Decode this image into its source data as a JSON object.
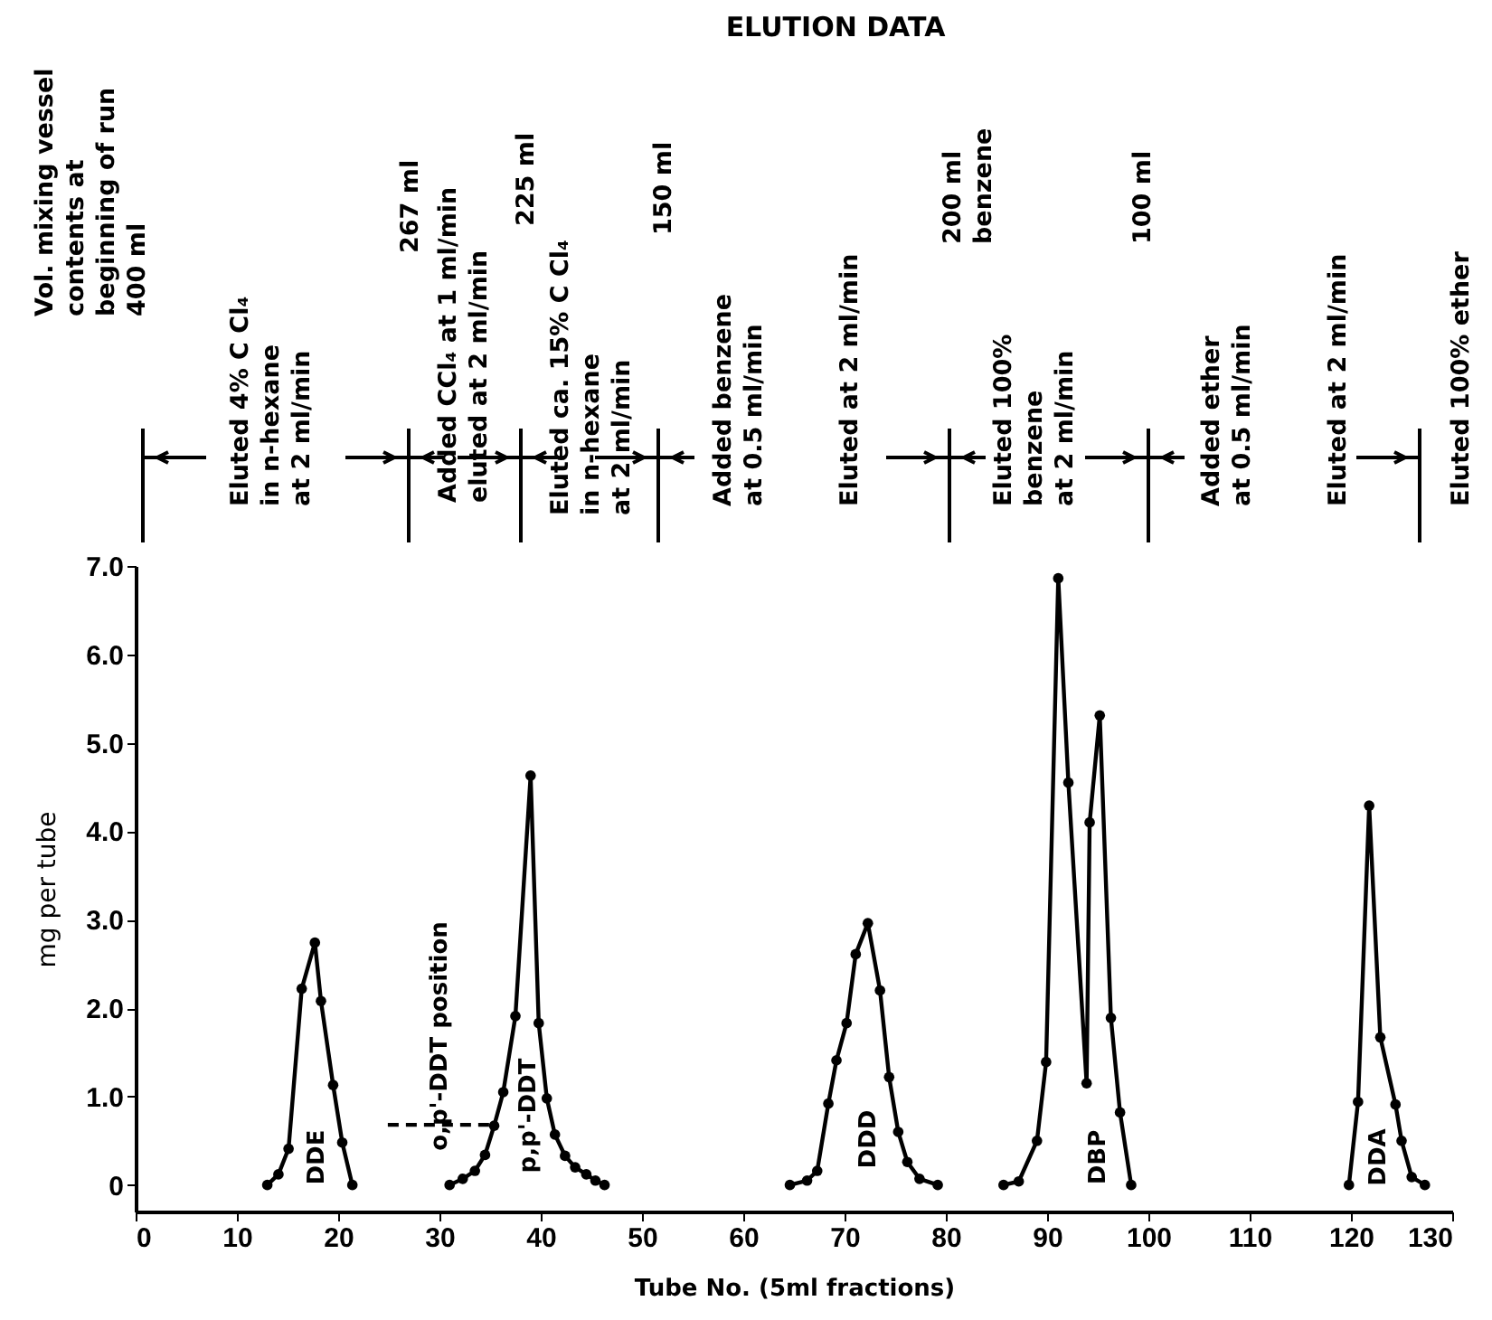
{
  "chart_data": {
    "type": "line",
    "title": "ELUTION DATA",
    "xlabel": "Tube No. (5ml fractions)",
    "ylabel": "mg per tube",
    "xlim": [
      0,
      130
    ],
    "xticks": [
      0,
      10,
      20,
      30,
      40,
      50,
      60,
      70,
      80,
      90,
      100,
      110,
      120,
      130
    ],
    "ylim": [
      -0.3,
      7
    ],
    "yticks": [
      0,
      {
        "value": 1,
        "label": "1.0"
      },
      {
        "value": 2,
        "label": "2.0"
      },
      {
        "value": 3,
        "label": "3.0"
      },
      {
        "value": 4,
        "label": "4.0"
      },
      {
        "value": 5,
        "label": "5.0"
      },
      {
        "value": 6,
        "label": "6.0"
      },
      {
        "value": 7,
        "label": "7.0"
      }
    ],
    "grid": false,
    "line_style": "solid",
    "series": [
      {
        "color": "#000000",
        "marker": "circle",
        "x": [
          13,
          14.1,
          15.1,
          16.4,
          17.7,
          18.3,
          19.5,
          20.4,
          21.4
        ],
        "values": [
          0,
          0.12,
          0.41,
          2.22,
          2.74,
          2.08,
          1.13,
          0.48,
          0
        ]
      },
      {
        "color": "#000000",
        "marker": "circle",
        "x": [
          31,
          32.3,
          33.5,
          34.5,
          35.4,
          36.3,
          37.5,
          39,
          39.8,
          40.6,
          41.4,
          42.4,
          43.4,
          44.5,
          45.4,
          46.3
        ],
        "values": [
          0,
          0.07,
          0.16,
          0.34,
          0.67,
          1.05,
          1.91,
          4.63,
          1.83,
          0.98,
          0.57,
          0.33,
          0.2,
          0.12,
          0.05,
          0
        ]
      },
      {
        "color": "#000000",
        "marker": "circle",
        "x": [
          64.6,
          66.3,
          67.3,
          68.4,
          69.2,
          70.2,
          71.1,
          72.3,
          73.5,
          74.4,
          75.3,
          76.2,
          77.4,
          79.2
        ],
        "values": [
          0,
          0.05,
          0.16,
          0.92,
          1.41,
          1.83,
          2.61,
          2.96,
          2.2,
          1.22,
          0.6,
          0.26,
          0.07,
          0
        ]
      },
      {
        "color": "#000000",
        "marker": "circle",
        "x": [
          85.7,
          87.2,
          89,
          89.9,
          91.1,
          92.1,
          93.9,
          94.2,
          95.2,
          96.3,
          97.2,
          98.3
        ],
        "values": [
          0,
          0.04,
          0.5,
          1.39,
          6.86,
          4.55,
          1.15,
          4.1,
          5.31,
          1.89,
          0.82,
          0
        ]
      },
      {
        "color": "#000000",
        "marker": "circle",
        "x": [
          119.8,
          120.7,
          121.8,
          122.9,
          124.4,
          125,
          126,
          127.3
        ],
        "values": [
          0,
          0.94,
          4.29,
          1.67,
          0.91,
          0.5,
          0.09,
          0
        ]
      },
      {
        "color": "#000000",
        "x": [
          24.9,
          35.4
        ],
        "values": [
          0.68,
          0.68
        ],
        "line_style": "dashed"
      }
    ],
    "annotations": [
      "Vol. mixing vessel\ncontents at\nbeginning of run\n400 ml",
      "Eluted 4% C Cl₄\nin n-hexane\nat 2 ml/min",
      "267 ml",
      "Added CCl₄ at 1 ml/min\neluted at 2 ml/min",
      "225 ml",
      "Eluted ca. 15% C Cl₄\nin n-hexane\nat 2 ml/min",
      "150 ml",
      "Added benzene\nat 0.5 ml/min",
      "Eluted at 2 ml/min",
      "200 ml\nbenzene",
      "Eluted 100%\nbenzene\nat 2 ml/min",
      "100 ml",
      "Added ether\nat 0.5 ml/min",
      "Eluted at 2 ml/min",
      "Eluted 100% ether",
      "DDE",
      "o,p'-DDT position",
      "p,p'-DDT",
      "DDD",
      "DBP",
      "DDA"
    ]
  }
}
